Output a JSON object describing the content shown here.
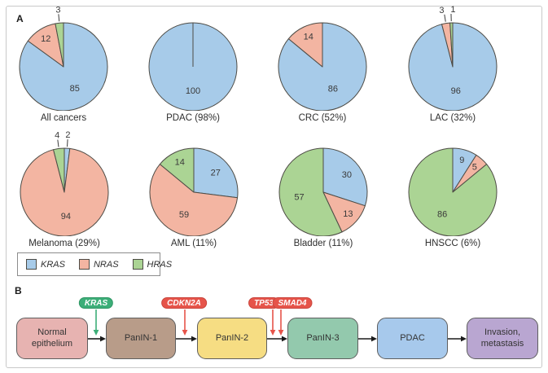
{
  "panel_a": {
    "label": "A",
    "legend": {
      "items": [
        {
          "label": "KRAS",
          "gene": "KRAS"
        },
        {
          "label": "NRAS",
          "gene": "NRAS"
        },
        {
          "label": "HRAS",
          "gene": "HRAS"
        }
      ]
    }
  },
  "gene_colors": {
    "KRAS": "#a7cbe9",
    "NRAS": "#f3b5a2",
    "HRAS": "#abd494"
  },
  "chart_data": [
    {
      "type": "pie",
      "title": "All cancers",
      "slices": [
        {
          "gene": "KRAS",
          "value": 85
        },
        {
          "gene": "NRAS",
          "value": 12
        },
        {
          "gene": "HRAS",
          "value": 3
        }
      ]
    },
    {
      "type": "pie",
      "title": "PDAC (98%)",
      "slices": [
        {
          "gene": "KRAS",
          "value": 100
        }
      ]
    },
    {
      "type": "pie",
      "title": "CRC (52%)",
      "slices": [
        {
          "gene": "KRAS",
          "value": 86
        },
        {
          "gene": "NRAS",
          "value": 14
        }
      ]
    },
    {
      "type": "pie",
      "title": "LAC (32%)",
      "slices": [
        {
          "gene": "KRAS",
          "value": 96
        },
        {
          "gene": "NRAS",
          "value": 3
        },
        {
          "gene": "HRAS",
          "value": 1
        }
      ]
    },
    {
      "type": "pie",
      "title": "Melanoma (29%)",
      "slices": [
        {
          "gene": "KRAS",
          "value": 2
        },
        {
          "gene": "NRAS",
          "value": 94
        },
        {
          "gene": "HRAS",
          "value": 4
        }
      ]
    },
    {
      "type": "pie",
      "title": "AML (11%)",
      "slices": [
        {
          "gene": "KRAS",
          "value": 27
        },
        {
          "gene": "NRAS",
          "value": 59
        },
        {
          "gene": "HRAS",
          "value": 14
        }
      ]
    },
    {
      "type": "pie",
      "title": "Bladder (11%)",
      "slices": [
        {
          "gene": "KRAS",
          "value": 30
        },
        {
          "gene": "NRAS",
          "value": 13
        },
        {
          "gene": "HRAS",
          "value": 57
        }
      ]
    },
    {
      "type": "pie",
      "title": "HNSCC (6%)",
      "slices": [
        {
          "gene": "KRAS",
          "value": 9
        },
        {
          "gene": "NRAS",
          "value": 5
        },
        {
          "gene": "HRAS",
          "value": 86
        }
      ]
    }
  ],
  "panel_b": {
    "label": "B",
    "boxes": [
      {
        "label": "Normal epithelium",
        "color": "#e7b3b1"
      },
      {
        "label": "PanIN-1",
        "color": "#b89c89"
      },
      {
        "label": "PanIN-2",
        "color": "#f6dd83"
      },
      {
        "label": "PanIN-3",
        "color": "#93c9ad"
      },
      {
        "label": "PDAC",
        "color": "#a7c9ec"
      },
      {
        "label": "Invasion, metastasis",
        "color": "#b9a6d1"
      }
    ],
    "badges": [
      {
        "label": "KRAS",
        "color": "#3cae78",
        "border": "#2f9664"
      },
      {
        "label": "CDKN2A",
        "color": "#e6544a",
        "border": "#c9453c"
      },
      {
        "label": "TP53",
        "color": "#e6544a",
        "border": "#c9453c"
      },
      {
        "label": "SMAD4",
        "color": "#e6544a",
        "border": "#c9453c"
      }
    ]
  },
  "styles": {
    "slice_outline": "#4d4b45",
    "number_text": "#3a3a3a",
    "figure_border": "#c9c9c9",
    "legend_border": "#8c8c8c",
    "box_border": "#5e5e5e",
    "arrow_black": "#1a1a1a"
  }
}
